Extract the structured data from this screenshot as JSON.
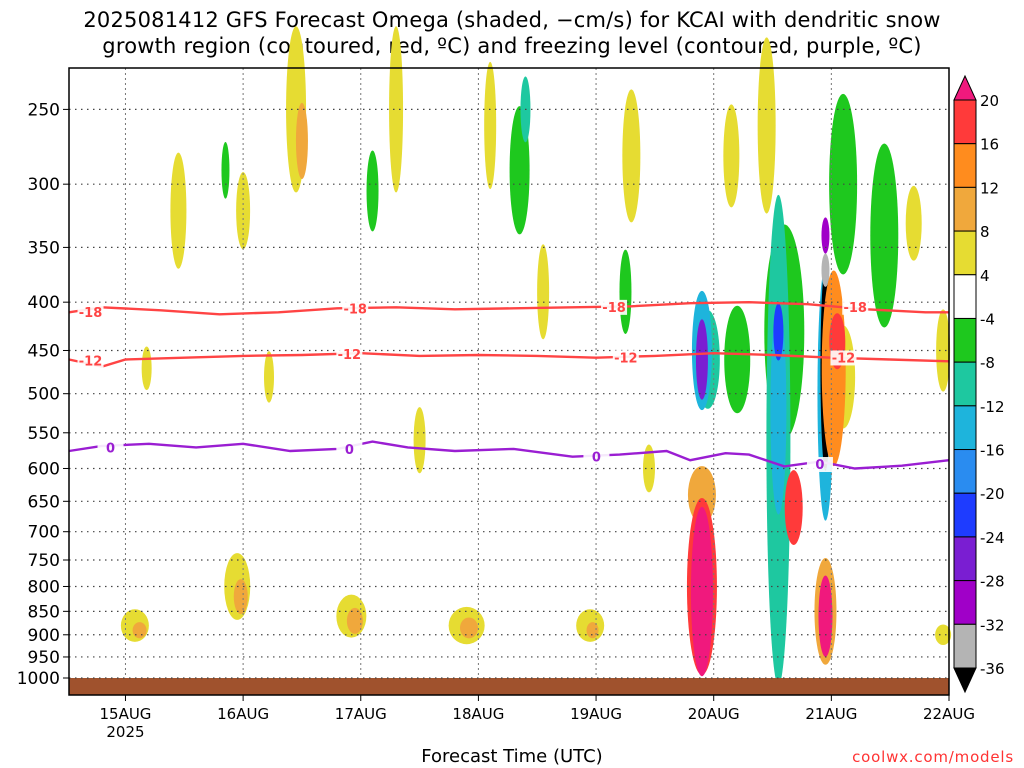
{
  "title_line1": "2025081412 GFS Forecast Omega (shaded, −cm/s) for KCAI with dendritic snow",
  "title_line2": "growth region (contoured, red, ºC) and freezing level (contoured, purple, ºC)",
  "x_axis_label": "Forecast Time (UTC)",
  "credit": "coolwx.com/models",
  "chart_data": {
    "type": "heatmap",
    "title": "2025081412 GFS Forecast Omega (shaded, −cm/s) for KCAI with dendritic snow growth region (contoured, red, ºC) and freezing level (contoured, purple, ºC)",
    "xlabel": "Forecast Time (UTC)",
    "ylabel": "",
    "x_ticks": [
      "15AUG",
      "16AUG",
      "17AUG",
      "18AUG",
      "19AUG",
      "20AUG",
      "21AUG",
      "22AUG"
    ],
    "x_sub_label": "2025",
    "y_ticks": [
      250,
      300,
      350,
      400,
      450,
      500,
      550,
      600,
      650,
      700,
      750,
      800,
      850,
      900,
      950,
      1000
    ],
    "y_scale": "log-pressure (hPa), reversed",
    "xlim_days": [
      14.52,
      22.0
    ],
    "colorbar": {
      "levels": [
        20,
        16,
        12,
        8,
        4,
        -4,
        -8,
        -12,
        -16,
        -20,
        -24,
        -28,
        -32,
        -36
      ],
      "colors": [
        "#f0197d",
        "#ff3a3a",
        "#ff8c1e",
        "#f0a83c",
        "#e6dc32",
        "#ffffff",
        "#1ec81e",
        "#1ec8a0",
        "#1eb4dc",
        "#2a8cf0",
        "#1e3cff",
        "#7a1ed2",
        "#a000c8",
        "#b4b4b4",
        "#000000"
      ]
    },
    "contours": [
      {
        "name": "-18",
        "color": "#ff4444",
        "values": [
          [
            14.52,
            410
          ],
          [
            14.8,
            405
          ],
          [
            15.3,
            408
          ],
          [
            15.8,
            412
          ],
          [
            16.3,
            410
          ],
          [
            16.8,
            406
          ],
          [
            17.3,
            405
          ],
          [
            17.8,
            407
          ],
          [
            18.3,
            406
          ],
          [
            18.8,
            405
          ],
          [
            19.3,
            404
          ],
          [
            19.8,
            401
          ],
          [
            20.3,
            400
          ],
          [
            20.8,
            402
          ],
          [
            21.3,
            407
          ],
          [
            21.8,
            410
          ],
          [
            22.0,
            410
          ]
        ],
        "labels": [
          [
            14.55,
            "-18"
          ],
          [
            16.8,
            "-18"
          ],
          [
            19.0,
            "-18"
          ],
          [
            21.05,
            "-18"
          ]
        ]
      },
      {
        "name": "-12",
        "color": "#ff4444",
        "values": [
          [
            14.52,
            460
          ],
          [
            14.8,
            468
          ],
          [
            15.0,
            460
          ],
          [
            15.5,
            458
          ],
          [
            16.0,
            456
          ],
          [
            16.5,
            455
          ],
          [
            17.0,
            453
          ],
          [
            17.5,
            456
          ],
          [
            18.0,
            455
          ],
          [
            18.5,
            456
          ],
          [
            19.0,
            458
          ],
          [
            19.5,
            456
          ],
          [
            20.0,
            453
          ],
          [
            20.5,
            455
          ],
          [
            21.0,
            458
          ],
          [
            21.5,
            460
          ],
          [
            22.0,
            462
          ]
        ],
        "labels": [
          [
            14.55,
            "-12"
          ],
          [
            16.75,
            "-12"
          ],
          [
            19.1,
            "-12"
          ],
          [
            20.95,
            "-12"
          ]
        ]
      },
      {
        "name": "0",
        "color": "#9a1ed2",
        "values": [
          [
            14.52,
            575
          ],
          [
            14.8,
            568
          ],
          [
            15.2,
            565
          ],
          [
            15.6,
            570
          ],
          [
            16.0,
            565
          ],
          [
            16.4,
            575
          ],
          [
            16.8,
            572
          ],
          [
            17.1,
            562
          ],
          [
            17.4,
            570
          ],
          [
            17.8,
            575
          ],
          [
            18.3,
            572
          ],
          [
            18.8,
            583
          ],
          [
            19.2,
            580
          ],
          [
            19.6,
            575
          ],
          [
            19.8,
            588
          ],
          [
            20.1,
            578
          ],
          [
            20.3,
            580
          ],
          [
            20.6,
            597
          ],
          [
            20.9,
            590
          ],
          [
            21.2,
            600
          ],
          [
            21.6,
            596
          ],
          [
            22.0,
            588
          ]
        ],
        "labels": [
          [
            14.72,
            "0"
          ],
          [
            16.75,
            "0"
          ],
          [
            18.85,
            "0"
          ],
          [
            20.75,
            "0"
          ]
        ]
      }
    ],
    "shaded_regions": [
      {
        "x": 19.9,
        "p": [
          590,
          980
        ],
        "value": 20
      },
      {
        "x": 20.95,
        "p": [
          740,
          980
        ],
        "value": 20
      },
      {
        "x": 20.95,
        "p": [
          350,
          590
        ],
        "value": -36
      },
      {
        "x": 20.55,
        "p": [
          320,
          900
        ],
        "value": -16
      },
      {
        "x": 19.9,
        "p": [
          395,
          560
        ],
        "value": -20
      }
    ]
  },
  "axis": {
    "y_tick_values": [
      250,
      300,
      350,
      400,
      450,
      500,
      550,
      600,
      650,
      700,
      750,
      800,
      850,
      900,
      950,
      1000
    ]
  }
}
